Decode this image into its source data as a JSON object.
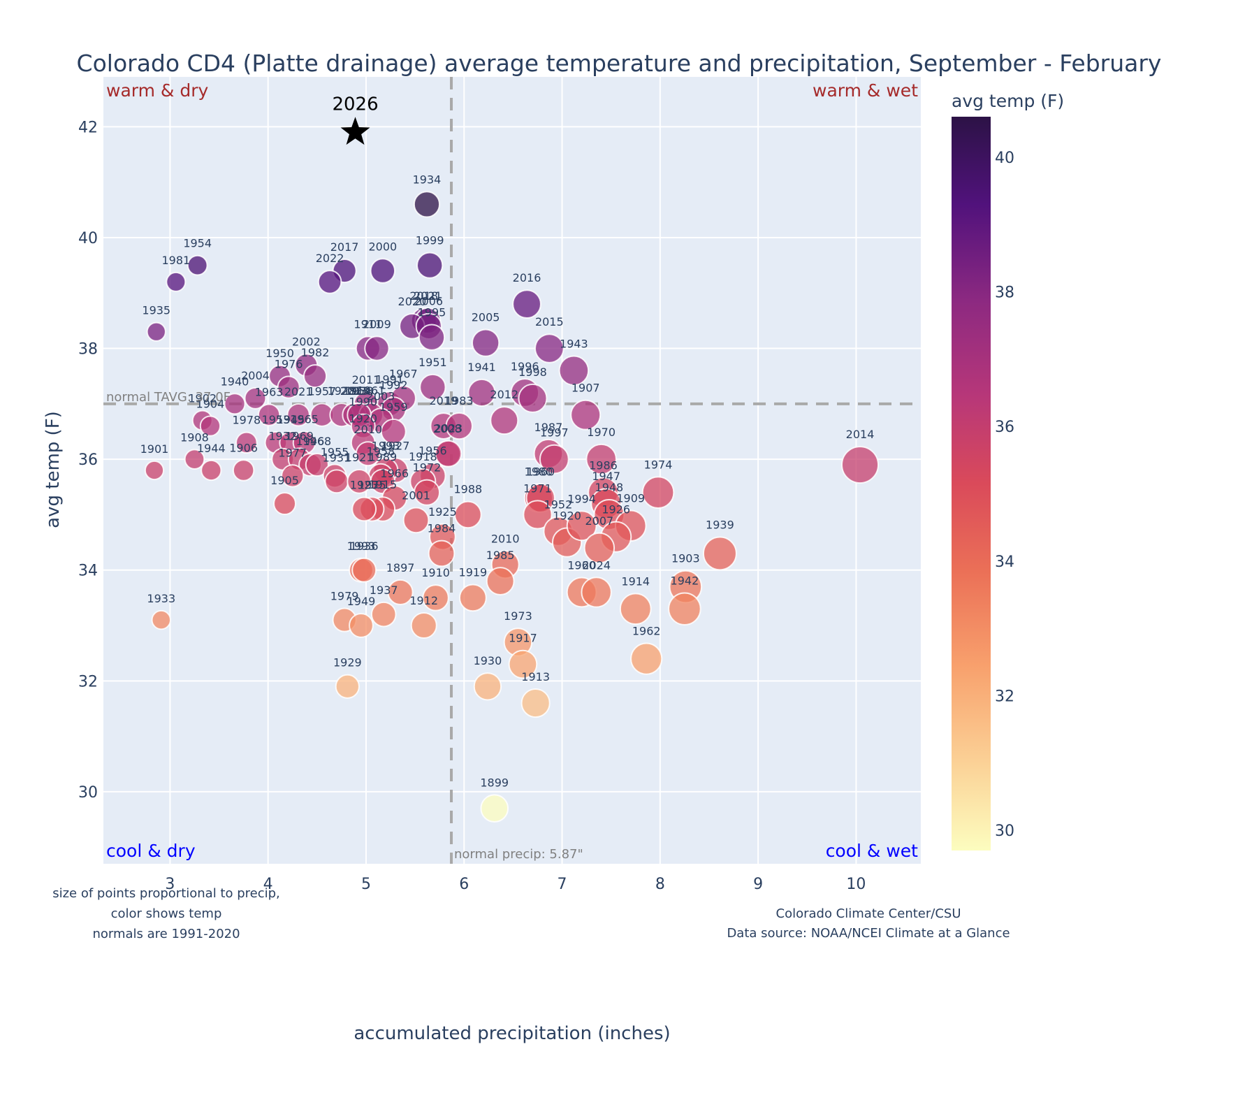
{
  "chart_data": {
    "type": "scatter",
    "title": "Colorado CD4 (Platte drainage) average temperature and precipitation, September - February",
    "xlabel": "accumulated precipitation (inches)",
    "ylabel": "avg temp (F)",
    "xlim": [
      2.32,
      10.66
    ],
    "ylim": [
      28.7,
      42.9
    ],
    "xticks": [
      3,
      4,
      5,
      6,
      7,
      8,
      9,
      10
    ],
    "yticks": [
      30,
      32,
      34,
      36,
      38,
      40,
      42
    ],
    "grid": true,
    "normals": {
      "precip": 5.87,
      "temp": 37.0,
      "precip_label": "normal precip: 5.87\"",
      "temp_label": "normal TAVG: 37.0F"
    },
    "quadrant_labels": {
      "top_left": "warm & dry",
      "top_right": "warm & wet",
      "bottom_left": "cool & dry",
      "bottom_right": "cool & wet"
    },
    "colorbar": {
      "title": "avg temp (F)",
      "range": [
        29.7,
        40.6
      ],
      "ticks": [
        30,
        32,
        34,
        36,
        38,
        40
      ],
      "colorscale": "magma-reversed"
    },
    "highlight": {
      "year": "2026",
      "precip": 4.89,
      "temp": 41.9,
      "marker": "star"
    },
    "points": [
      {
        "year": "1934",
        "precip": 5.62,
        "temp": 40.6
      },
      {
        "year": "1954",
        "precip": 3.28,
        "temp": 39.5
      },
      {
        "year": "1981",
        "precip": 3.06,
        "temp": 39.2
      },
      {
        "year": "2017",
        "precip": 4.78,
        "temp": 39.4
      },
      {
        "year": "2022",
        "precip": 4.63,
        "temp": 39.2
      },
      {
        "year": "2000",
        "precip": 5.17,
        "temp": 39.4
      },
      {
        "year": "1999",
        "precip": 5.65,
        "temp": 39.5
      },
      {
        "year": "1935",
        "precip": 2.86,
        "temp": 38.3
      },
      {
        "year": "2016",
        "precip": 6.64,
        "temp": 38.8
      },
      {
        "year": "2018",
        "precip": 5.59,
        "temp": 38.5
      },
      {
        "year": "2021",
        "precip": 5.63,
        "temp": 38.5
      },
      {
        "year": "2020",
        "precip": 5.47,
        "temp": 38.4
      },
      {
        "year": "2006",
        "precip": 5.64,
        "temp": 38.4
      },
      {
        "year": "1995",
        "precip": 5.67,
        "temp": 38.2
      },
      {
        "year": "1911",
        "precip": 5.02,
        "temp": 38.0
      },
      {
        "year": "2009",
        "precip": 5.11,
        "temp": 38.0
      },
      {
        "year": "2005",
        "precip": 6.22,
        "temp": 38.1
      },
      {
        "year": "2015",
        "precip": 6.87,
        "temp": 38.0
      },
      {
        "year": "1943",
        "precip": 7.12,
        "temp": 37.6
      },
      {
        "year": "2002",
        "precip": 4.39,
        "temp": 37.7
      },
      {
        "year": "1982",
        "precip": 4.48,
        "temp": 37.5
      },
      {
        "year": "1950",
        "precip": 4.12,
        "temp": 37.5
      },
      {
        "year": "1976",
        "precip": 4.21,
        "temp": 37.3
      },
      {
        "year": "1951",
        "precip": 5.68,
        "temp": 37.3
      },
      {
        "year": "1941",
        "precip": 6.18,
        "temp": 37.2
      },
      {
        "year": "1996",
        "precip": 6.62,
        "temp": 37.2
      },
      {
        "year": "1998",
        "precip": 6.7,
        "temp": 37.1
      },
      {
        "year": "2004",
        "precip": 3.87,
        "temp": 37.1
      },
      {
        "year": "1940",
        "precip": 3.66,
        "temp": 37.0
      },
      {
        "year": "1907",
        "precip": 7.24,
        "temp": 36.8
      },
      {
        "year": "2011",
        "precip": 5.0,
        "temp": 37.0
      },
      {
        "year": "1991",
        "precip": 5.24,
        "temp": 37.0
      },
      {
        "year": "1967",
        "precip": 5.38,
        "temp": 37.1
      },
      {
        "year": "1964",
        "precip": 4.91,
        "temp": 36.8
      },
      {
        "year": "1992",
        "precip": 5.28,
        "temp": 36.9
      },
      {
        "year": "1963",
        "precip": 4.01,
        "temp": 36.8
      },
      {
        "year": "2021b",
        "precip": 4.31,
        "temp": 36.8
      },
      {
        "year": "1957",
        "precip": 4.55,
        "temp": 36.8
      },
      {
        "year": "1928",
        "precip": 4.75,
        "temp": 36.8
      },
      {
        "year": "2013",
        "precip": 4.88,
        "temp": 36.8
      },
      {
        "year": "1961",
        "precip": 5.05,
        "temp": 36.8
      },
      {
        "year": "2003",
        "precip": 5.15,
        "temp": 36.7
      },
      {
        "year": "1938",
        "precip": 4.93,
        "temp": 36.8
      },
      {
        "year": "1990",
        "precip": 4.97,
        "temp": 36.6
      },
      {
        "year": "1959",
        "precip": 5.28,
        "temp": 36.5
      },
      {
        "year": "2019",
        "precip": 5.79,
        "temp": 36.6
      },
      {
        "year": "1983",
        "precip": 5.95,
        "temp": 36.6
      },
      {
        "year": "2012",
        "precip": 6.41,
        "temp": 36.7
      },
      {
        "year": "1902",
        "precip": 3.33,
        "temp": 36.7
      },
      {
        "year": "1904",
        "precip": 3.41,
        "temp": 36.6
      },
      {
        "year": "1978",
        "precip": 3.78,
        "temp": 36.3
      },
      {
        "year": "1953",
        "precip": 4.08,
        "temp": 36.3
      },
      {
        "year": "1945",
        "precip": 4.23,
        "temp": 36.3
      },
      {
        "year": "1965",
        "precip": 4.37,
        "temp": 36.3
      },
      {
        "year": "1920b",
        "precip": 4.97,
        "temp": 36.3
      },
      {
        "year": "2010b",
        "precip": 5.02,
        "temp": 36.1
      },
      {
        "year": "2008",
        "precip": 5.83,
        "temp": 36.1
      },
      {
        "year": "1987",
        "precip": 6.86,
        "temp": 36.1
      },
      {
        "year": "1997",
        "precip": 6.92,
        "temp": 36.0
      },
      {
        "year": "1970",
        "precip": 7.4,
        "temp": 36.0
      },
      {
        "year": "2014",
        "precip": 10.04,
        "temp": 35.9
      },
      {
        "year": "1901",
        "precip": 2.84,
        "temp": 35.8
      },
      {
        "year": "1908",
        "precip": 3.25,
        "temp": 36.0
      },
      {
        "year": "1944",
        "precip": 3.42,
        "temp": 35.8
      },
      {
        "year": "1906",
        "precip": 3.75,
        "temp": 35.8
      },
      {
        "year": "1932",
        "precip": 4.15,
        "temp": 36.0
      },
      {
        "year": "1969",
        "precip": 4.32,
        "temp": 36.0
      },
      {
        "year": "1946",
        "precip": 4.43,
        "temp": 35.9
      },
      {
        "year": "1968",
        "precip": 4.5,
        "temp": 35.9
      },
      {
        "year": "1977",
        "precip": 4.25,
        "temp": 35.7
      },
      {
        "year": "1955",
        "precip": 4.68,
        "temp": 35.7
      },
      {
        "year": "1931",
        "precip": 4.7,
        "temp": 35.6
      },
      {
        "year": "1927",
        "precip": 5.3,
        "temp": 35.8
      },
      {
        "year": "1993",
        "precip": 5.2,
        "temp": 35.8
      },
      {
        "year": "1958",
        "precip": 5.15,
        "temp": 35.7
      },
      {
        "year": "1921",
        "precip": 4.93,
        "temp": 35.6
      },
      {
        "year": "1989",
        "precip": 5.17,
        "temp": 35.6
      },
      {
        "year": "2023",
        "precip": 5.84,
        "temp": 36.1
      },
      {
        "year": "1956",
        "precip": 5.68,
        "temp": 35.7
      },
      {
        "year": "1918",
        "precip": 5.58,
        "temp": 35.6
      },
      {
        "year": "1972",
        "precip": 5.62,
        "temp": 35.4
      },
      {
        "year": "1966",
        "precip": 5.29,
        "temp": 35.3
      },
      {
        "year": "1915",
        "precip": 5.17,
        "temp": 35.1
      },
      {
        "year": "1975",
        "precip": 5.06,
        "temp": 35.1
      },
      {
        "year": "1923",
        "precip": 4.98,
        "temp": 35.1
      },
      {
        "year": "2001",
        "precip": 5.51,
        "temp": 34.9
      },
      {
        "year": "1905",
        "precip": 4.17,
        "temp": 35.2
      },
      {
        "year": "1925",
        "precip": 5.78,
        "temp": 34.6
      },
      {
        "year": "1988",
        "precip": 6.04,
        "temp": 35.0
      },
      {
        "year": "1984",
        "precip": 5.77,
        "temp": 34.3
      },
      {
        "year": "1980",
        "precip": 6.76,
        "temp": 35.3
      },
      {
        "year": "1960b",
        "precip": 6.78,
        "temp": 35.3
      },
      {
        "year": "1971",
        "precip": 6.75,
        "temp": 35.0
      },
      {
        "year": "1952",
        "precip": 6.96,
        "temp": 34.7
      },
      {
        "year": "1920",
        "precip": 7.05,
        "temp": 34.5
      },
      {
        "year": "1994",
        "precip": 7.2,
        "temp": 34.8
      },
      {
        "year": "1986",
        "precip": 7.42,
        "temp": 35.4
      },
      {
        "year": "1947",
        "precip": 7.45,
        "temp": 35.2
      },
      {
        "year": "1948",
        "precip": 7.48,
        "temp": 35.0
      },
      {
        "year": "1909",
        "precip": 7.7,
        "temp": 34.8
      },
      {
        "year": "1926",
        "precip": 7.55,
        "temp": 34.6
      },
      {
        "year": "2007",
        "precip": 7.38,
        "temp": 34.4
      },
      {
        "year": "1974",
        "precip": 7.98,
        "temp": 35.4
      },
      {
        "year": "1939",
        "precip": 8.61,
        "temp": 34.3
      },
      {
        "year": "1903",
        "precip": 8.26,
        "temp": 33.7
      },
      {
        "year": "1942",
        "precip": 8.25,
        "temp": 33.3
      },
      {
        "year": "1960",
        "precip": 7.2,
        "temp": 33.6
      },
      {
        "year": "2024",
        "precip": 7.35,
        "temp": 33.6
      },
      {
        "year": "1914",
        "precip": 7.75,
        "temp": 33.3
      },
      {
        "year": "1962",
        "precip": 7.86,
        "temp": 32.4
      },
      {
        "year": "2010",
        "precip": 6.42,
        "temp": 34.1
      },
      {
        "year": "1985",
        "precip": 6.37,
        "temp": 33.8
      },
      {
        "year": "1919",
        "precip": 6.09,
        "temp": 33.5
      },
      {
        "year": "1910",
        "precip": 5.71,
        "temp": 33.5
      },
      {
        "year": "1897",
        "precip": 5.35,
        "temp": 33.6
      },
      {
        "year": "1912",
        "precip": 5.59,
        "temp": 33.0
      },
      {
        "year": "1937",
        "precip": 5.18,
        "temp": 33.2
      },
      {
        "year": "1993b",
        "precip": 4.95,
        "temp": 34.0
      },
      {
        "year": "1936",
        "precip": 4.98,
        "temp": 34.0
      },
      {
        "year": "1979",
        "precip": 4.78,
        "temp": 33.1
      },
      {
        "year": "1949",
        "precip": 4.95,
        "temp": 33.0
      },
      {
        "year": "1933",
        "precip": 2.91,
        "temp": 33.1
      },
      {
        "year": "1973",
        "precip": 6.55,
        "temp": 32.7
      },
      {
        "year": "1917",
        "precip": 6.6,
        "temp": 32.3
      },
      {
        "year": "1930",
        "precip": 6.24,
        "temp": 31.9
      },
      {
        "year": "1913",
        "precip": 6.73,
        "temp": 31.6
      },
      {
        "year": "1929",
        "precip": 4.81,
        "temp": 31.9
      },
      {
        "year": "1899",
        "precip": 6.31,
        "temp": 29.7
      }
    ]
  },
  "footnotes": {
    "left": [
      "size of points proportional to precip,",
      "color shows temp",
      "normals are 1991-2020"
    ],
    "right": [
      "Colorado Climate Center/CSU",
      "Data source: NOAA/NCEI Climate at a Glance"
    ]
  },
  "colors": {
    "plot_bg": "#e5ecf6",
    "grid": "#ffffff",
    "text": "#2a3f5f",
    "warm_label": "#a52a2a",
    "cool_label": "#0000ff",
    "ref_line": "#a9a9a9"
  }
}
